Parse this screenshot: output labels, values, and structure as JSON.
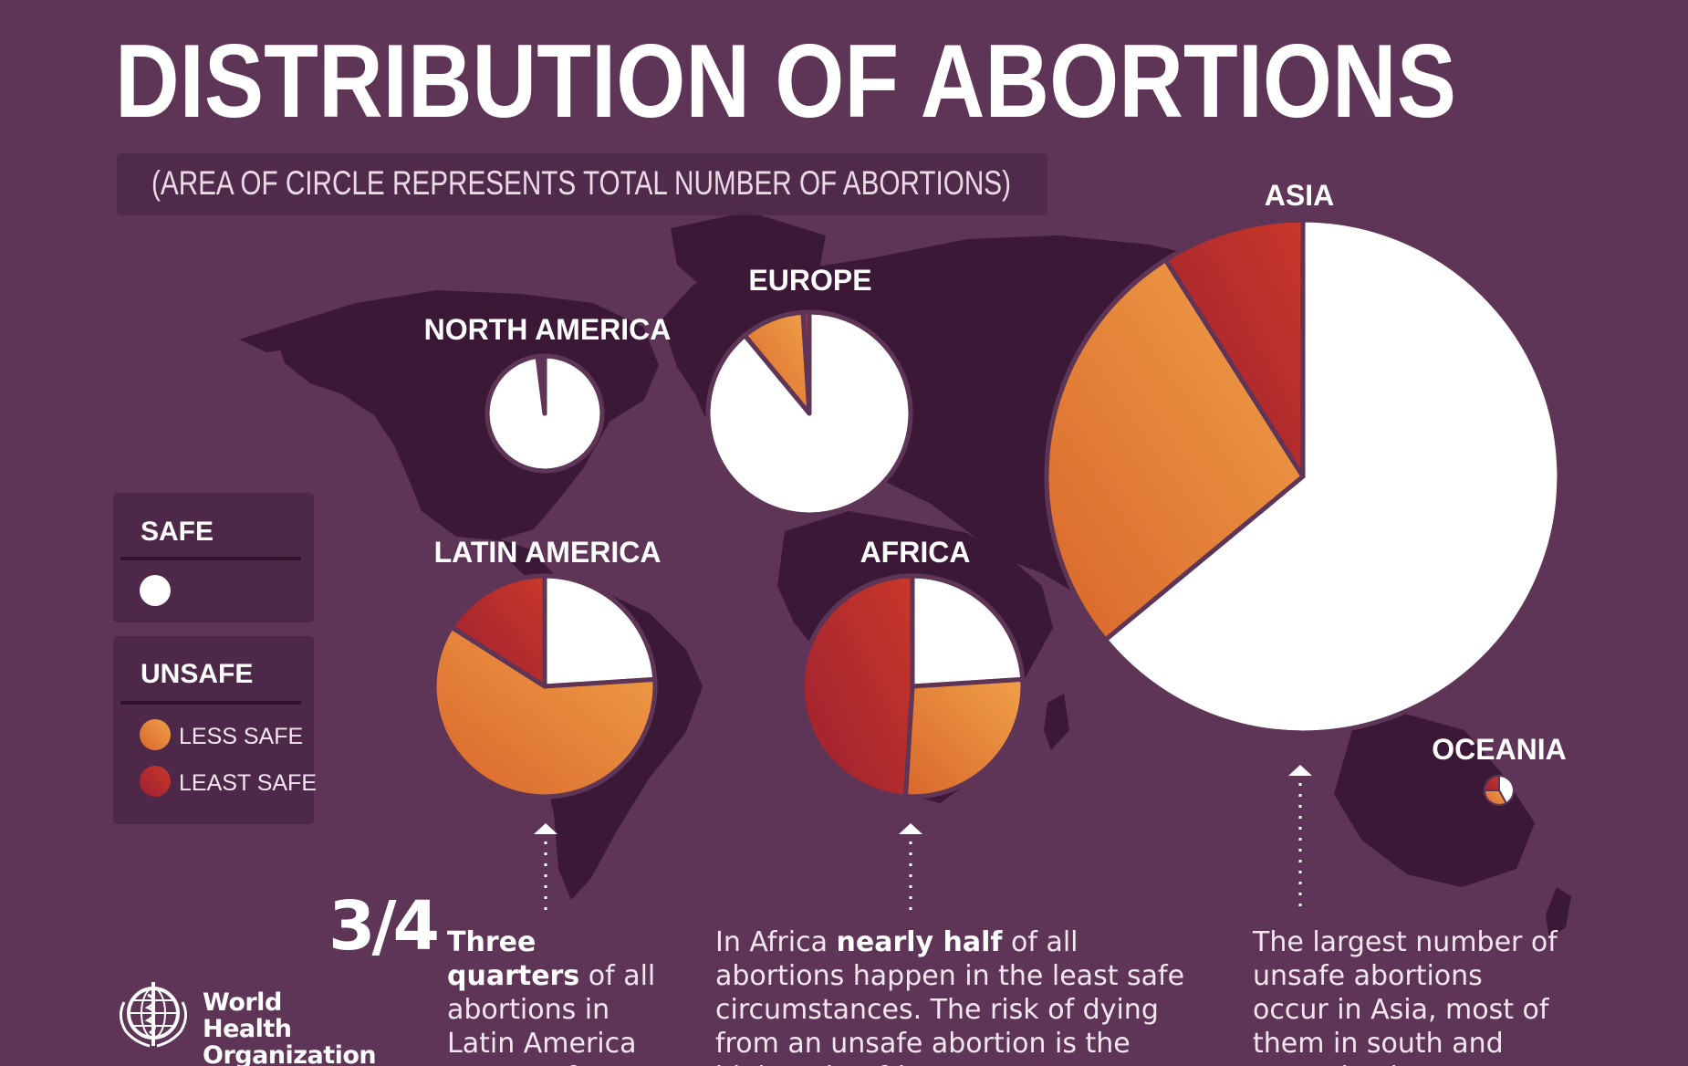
{
  "title": "DISTRIBUTION OF ABORTIONS",
  "subtitle": "(AREA OF CIRCLE REPRESENTS TOTAL NUMBER OF ABORTIONS)",
  "legend": {
    "safe_header": "SAFE",
    "unsafe_header": "UNSAFE",
    "less_safe": "LESS SAFE",
    "least_safe": "LEAST SAFE"
  },
  "colors": {
    "background": "#5e3556",
    "map": "#3a1836",
    "safe": "#ffffff",
    "less_safe": "#e8853a",
    "least_safe": "#b8302e",
    "legend_box": "#4d2848"
  },
  "chart_data": {
    "type": "pie",
    "size_encoding": "area of circle represents total number of abortions",
    "categories": [
      "Safe",
      "Less safe",
      "Least safe"
    ],
    "series": [
      {
        "name": "NORTH AMERICA",
        "values": [
          98,
          1,
          1
        ]
      },
      {
        "name": "EUROPE",
        "values": [
          89,
          10,
          1
        ]
      },
      {
        "name": "LATIN AMERICA",
        "values": [
          24,
          60,
          16
        ]
      },
      {
        "name": "AFRICA",
        "values": [
          24,
          27,
          49
        ]
      },
      {
        "name": "ASIA",
        "values": [
          64,
          27,
          9
        ]
      },
      {
        "name": "OCEANIA",
        "values": [
          42,
          33,
          25
        ]
      }
    ]
  },
  "captions": {
    "fraction": "3/4",
    "latin_bold": "Three quarters",
    "latin_rest": "of all abortions in Latin America are unsafe.",
    "africa_pre": "In Africa ",
    "africa_bold": "nearly half",
    "africa_rest": " of all abortions happen in the least safe circumstances. The risk of dying from an unsafe abortion is the highest in Africa.",
    "asia_text": "The largest number of unsafe abortions occur in Asia, most of them in south and central Asia."
  },
  "logo": {
    "line1": "World Health",
    "line2": "Organization"
  }
}
